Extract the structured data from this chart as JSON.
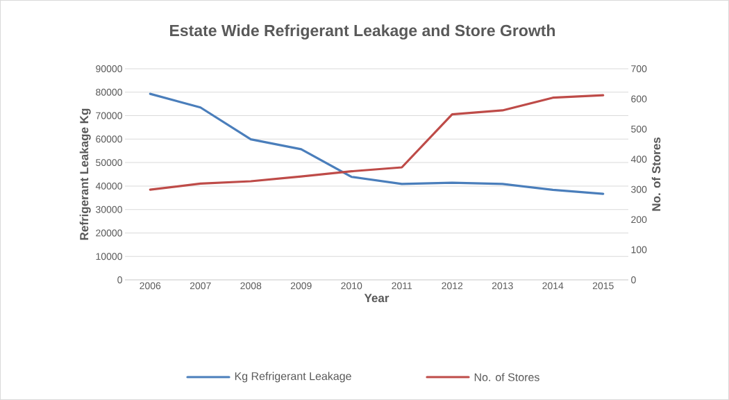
{
  "chart_data": {
    "type": "line",
    "title": "Estate Wide Refrigerant Leakage and Store Growth",
    "xlabel": "Year",
    "ylabel": "Refrigerant Leakage Kg",
    "y2label": "No. of Stores",
    "categories": [
      "2006",
      "2007",
      "2008",
      "2009",
      "2010",
      "2011",
      "2012",
      "2013",
      "2014",
      "2015"
    ],
    "series": [
      {
        "name": "Kg Refrigerant Leakage",
        "color": "#4a7ebb",
        "values": [
          79300,
          73500,
          59900,
          55700,
          43900,
          40900,
          41400,
          40900,
          38400,
          36700
        ]
      },
      {
        "name": "No. of Stores",
        "color": "#be4b48",
        "axis": "y2",
        "values": [
          299,
          319,
          327,
          343,
          360,
          373,
          549,
          562,
          604,
          612
        ]
      }
    ],
    "ylim": [
      0,
      90000
    ],
    "yticks": [
      0,
      10000,
      20000,
      30000,
      40000,
      50000,
      60000,
      70000,
      80000,
      90000
    ],
    "y2lim": [
      0,
      700
    ],
    "y2ticks": [
      0,
      100,
      200,
      300,
      400,
      500,
      600,
      700
    ],
    "grid": "y",
    "legend": "bottom",
    "marker": "none",
    "line_style": "solid"
  }
}
